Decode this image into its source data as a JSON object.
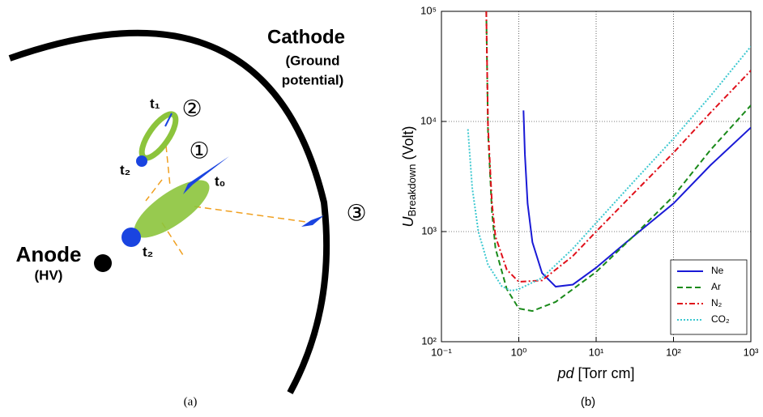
{
  "diagram": {
    "cathode": "Cathode",
    "cathode_note_1": "(Ground",
    "cathode_note_2": "potential)",
    "anode": "Anode",
    "anode_note": "(HV)",
    "marker_1": "①",
    "marker_2": "②",
    "marker_3": "③",
    "t0": "t₀",
    "t1": "t₁",
    "t2_upper": "t₂",
    "t2_lower": "t₂",
    "caption": "(a)"
  },
  "chart_data": {
    "type": "line",
    "caption": "(b)",
    "xlabel": {
      "symbol": "pd",
      "unit": "[Torr cm]"
    },
    "ylabel": {
      "symbol": "U",
      "subscript": "Breakdown",
      "unit": "(Volt)"
    },
    "log_x": true,
    "log_y": true,
    "grid": true,
    "legend": "lower right",
    "xlim": [
      0.1,
      1000
    ],
    "ylim": [
      100,
      100000
    ],
    "xticks": [
      {
        "value": 0.1,
        "label": "10⁻¹"
      },
      {
        "value": 1,
        "label": "10⁰"
      },
      {
        "value": 10,
        "label": "10¹"
      },
      {
        "value": 100,
        "label": "10²"
      },
      {
        "value": 1000,
        "label": "10³"
      }
    ],
    "yticks": [
      {
        "value": 100,
        "label": "10²"
      },
      {
        "value": 1000,
        "label": "10³"
      },
      {
        "value": 10000,
        "label": "10⁴"
      },
      {
        "value": 100000,
        "label": "10⁵"
      }
    ],
    "series": [
      {
        "name": "Ne",
        "color": "#1a1ad6",
        "dash": "solid",
        "x": [
          1.15,
          1.2,
          1.3,
          1.5,
          2,
          3,
          5,
          10,
          30,
          100,
          300,
          1000
        ],
        "values": [
          12600,
          5000,
          1800,
          800,
          420,
          316,
          330,
          470,
          900,
          1800,
          4000,
          8800
        ]
      },
      {
        "name": "Ar",
        "color": "#1a8a1a",
        "dash": "dashed",
        "x": [
          0.38,
          0.4,
          0.45,
          0.5,
          0.7,
          1,
          1.5,
          3,
          10,
          30,
          100,
          300,
          1000
        ],
        "values": [
          100000,
          8000,
          1500,
          700,
          300,
          200,
          190,
          230,
          430,
          900,
          2100,
          5500,
          14000
        ]
      },
      {
        "name": "N₂",
        "color": "#e0101a",
        "dash": "dashdot",
        "x": [
          0.38,
          0.4,
          0.45,
          0.5,
          0.7,
          1,
          2,
          5,
          10,
          30,
          100,
          300,
          1000
        ],
        "values": [
          100000,
          9000,
          1800,
          900,
          450,
          350,
          360,
          600,
          1000,
          2200,
          5200,
          12000,
          29000
        ]
      },
      {
        "name": "CO₂",
        "color": "#3cc8d0",
        "dash": "dotted",
        "x": [
          0.22,
          0.25,
          0.3,
          0.4,
          0.6,
          0.8,
          1,
          2,
          5,
          10,
          30,
          100,
          300,
          1000
        ],
        "values": [
          8500,
          2500,
          1000,
          500,
          320,
          290,
          300,
          380,
          700,
          1200,
          2800,
          7000,
          17000,
          48000
        ]
      }
    ]
  }
}
